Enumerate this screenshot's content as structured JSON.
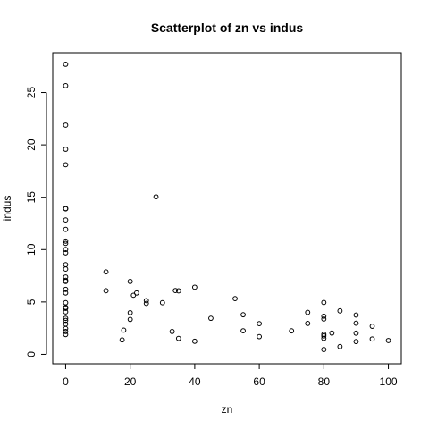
{
  "chart_data": {
    "type": "scatter",
    "title": "Scatterplot of zn vs indus",
    "xlabel": "zn",
    "ylabel": "indus",
    "xlim": [
      -4,
      104
    ],
    "ylim": [
      -0.9,
      28.8
    ],
    "x_ticks": [
      0,
      20,
      40,
      60,
      80,
      100
    ],
    "y_ticks": [
      0,
      5,
      10,
      15,
      20,
      25
    ],
    "grid": false,
    "legend": "none",
    "points": [
      {
        "x": 0,
        "y": 27.7
      },
      {
        "x": 0,
        "y": 25.65
      },
      {
        "x": 0,
        "y": 21.89
      },
      {
        "x": 0,
        "y": 19.58
      },
      {
        "x": 0,
        "y": 18.1
      },
      {
        "x": 0,
        "y": 13.89
      },
      {
        "x": 0,
        "y": 13.92
      },
      {
        "x": 0,
        "y": 12.83
      },
      {
        "x": 0,
        "y": 11.93
      },
      {
        "x": 0,
        "y": 10.81
      },
      {
        "x": 0,
        "y": 10.59
      },
      {
        "x": 0,
        "y": 10.01
      },
      {
        "x": 0,
        "y": 9.69
      },
      {
        "x": 0,
        "y": 8.56
      },
      {
        "x": 0,
        "y": 8.14
      },
      {
        "x": 0,
        "y": 7.38
      },
      {
        "x": 0,
        "y": 7.07
      },
      {
        "x": 0,
        "y": 6.96
      },
      {
        "x": 0,
        "y": 6.2
      },
      {
        "x": 0,
        "y": 5.86
      },
      {
        "x": 0,
        "y": 4.93
      },
      {
        "x": 0,
        "y": 4.49
      },
      {
        "x": 0,
        "y": 4.39
      },
      {
        "x": 0,
        "y": 4.05
      },
      {
        "x": 0,
        "y": 3.44
      },
      {
        "x": 0,
        "y": 3.24
      },
      {
        "x": 0,
        "y": 2.89
      },
      {
        "x": 0,
        "y": 2.46
      },
      {
        "x": 0,
        "y": 2.18
      },
      {
        "x": 0,
        "y": 1.89
      },
      {
        "x": 12.5,
        "y": 7.87
      },
      {
        "x": 12.5,
        "y": 6.07
      },
      {
        "x": 17.5,
        "y": 1.38
      },
      {
        "x": 18,
        "y": 2.31
      },
      {
        "x": 20,
        "y": 6.96
      },
      {
        "x": 20,
        "y": 3.97
      },
      {
        "x": 20,
        "y": 3.33
      },
      {
        "x": 21,
        "y": 5.64
      },
      {
        "x": 22,
        "y": 5.86
      },
      {
        "x": 25,
        "y": 5.13
      },
      {
        "x": 25,
        "y": 4.86
      },
      {
        "x": 28,
        "y": 15.04
      },
      {
        "x": 30,
        "y": 4.93
      },
      {
        "x": 33,
        "y": 2.18
      },
      {
        "x": 34,
        "y": 6.09
      },
      {
        "x": 35,
        "y": 6.06
      },
      {
        "x": 35,
        "y": 1.52
      },
      {
        "x": 40,
        "y": 6.41
      },
      {
        "x": 40,
        "y": 1.25
      },
      {
        "x": 45,
        "y": 3.44
      },
      {
        "x": 52.5,
        "y": 5.32
      },
      {
        "x": 55,
        "y": 3.78
      },
      {
        "x": 55,
        "y": 2.25
      },
      {
        "x": 60,
        "y": 2.93
      },
      {
        "x": 60,
        "y": 1.69
      },
      {
        "x": 70,
        "y": 2.24
      },
      {
        "x": 75,
        "y": 4.0
      },
      {
        "x": 75,
        "y": 2.95
      },
      {
        "x": 80,
        "y": 4.95
      },
      {
        "x": 80,
        "y": 3.64
      },
      {
        "x": 80,
        "y": 3.37
      },
      {
        "x": 80,
        "y": 1.91
      },
      {
        "x": 80,
        "y": 1.76
      },
      {
        "x": 80,
        "y": 1.52
      },
      {
        "x": 80,
        "y": 0.46
      },
      {
        "x": 82.5,
        "y": 2.03
      },
      {
        "x": 85,
        "y": 4.15
      },
      {
        "x": 85,
        "y": 0.74
      },
      {
        "x": 90,
        "y": 3.75
      },
      {
        "x": 90,
        "y": 2.97
      },
      {
        "x": 90,
        "y": 2.02
      },
      {
        "x": 90,
        "y": 1.22
      },
      {
        "x": 95,
        "y": 2.68
      },
      {
        "x": 95,
        "y": 1.47
      },
      {
        "x": 100,
        "y": 1.32
      }
    ]
  }
}
